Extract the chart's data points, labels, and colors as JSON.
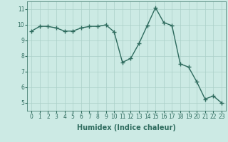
{
  "xlabel": "Humidex (Indice chaleur)",
  "x": [
    0,
    1,
    2,
    3,
    4,
    5,
    6,
    7,
    8,
    9,
    10,
    11,
    12,
    13,
    14,
    15,
    16,
    17,
    18,
    19,
    20,
    21,
    22,
    23
  ],
  "y": [
    9.6,
    9.9,
    9.9,
    9.8,
    9.6,
    9.6,
    9.8,
    9.9,
    9.9,
    10.0,
    9.55,
    7.6,
    7.85,
    8.8,
    9.95,
    11.1,
    10.15,
    9.95,
    7.5,
    7.3,
    6.35,
    5.25,
    5.45,
    5.0
  ],
  "line_color": "#2e6b5e",
  "marker": "+",
  "marker_size": 4,
  "linewidth": 1.0,
  "bg_color": "#cceae4",
  "grid_color": "#aacfc8",
  "tick_label_fontsize": 5.5,
  "xlabel_fontsize": 7,
  "ylim": [
    4.5,
    11.5
  ],
  "xlim": [
    -0.5,
    23.5
  ],
  "yticks": [
    5,
    6,
    7,
    8,
    9,
    10,
    11
  ],
  "xticks": [
    0,
    1,
    2,
    3,
    4,
    5,
    6,
    7,
    8,
    9,
    10,
    11,
    12,
    13,
    14,
    15,
    16,
    17,
    18,
    19,
    20,
    21,
    22,
    23
  ]
}
